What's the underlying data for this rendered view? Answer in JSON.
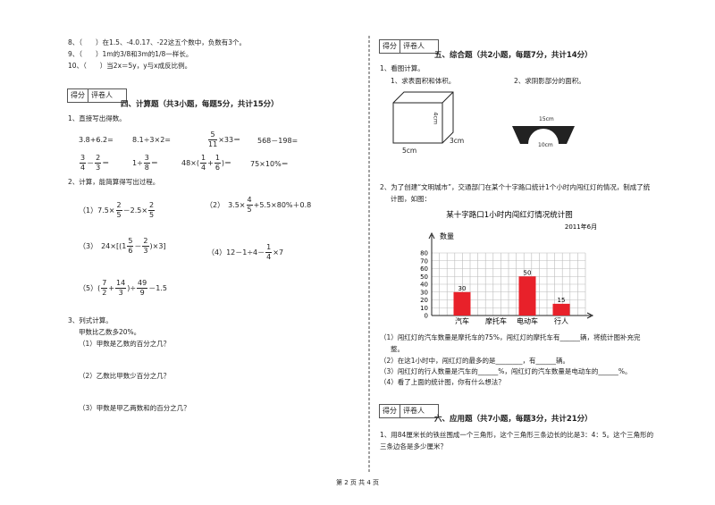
{
  "questions_top": [
    "8、（　　）在1.5、-4.0.17、-22这五个数中，负数有3个。",
    "9、（　　）1m的3/8和3m的1/8一样长。",
    "10、（　　）当2x＝5y，y与x成反比例。"
  ],
  "score_box": {
    "score": "得分",
    "grader": "评卷人"
  },
  "section4": {
    "heading": "四、计算题（共3小题，每题5分，共计15分）",
    "q1": {
      "title": "1、直接写出得数。",
      "items": [
        [
          "3.8+6.2="
        ],
        [
          "8.1÷3×2="
        ],
        [
          [
            "5",
            "11"
          ],
          "×33＝"
        ],
        [
          "568－198="
        ],
        [
          [
            "3",
            "4"
          ],
          "－",
          [
            "2",
            "3"
          ],
          "＝"
        ],
        [
          "1÷",
          [
            "3",
            "8"
          ],
          "＝"
        ],
        [
          "48×(",
          [
            "1",
            "4"
          ],
          "+",
          [
            "1",
            "6"
          ],
          ")＝"
        ],
        [
          "75×10%＝"
        ]
      ]
    },
    "q2": {
      "title": "2、计算，能简算得写出过程。",
      "items": [
        [
          "（1）7.5×",
          [
            "2",
            "5"
          ],
          "－2.5×",
          [
            "2",
            "5"
          ]
        ],
        [
          "（2）　3.5×",
          [
            "4",
            "5"
          ],
          "+5.5×80%＋0.8"
        ],
        [
          "（3）　24×[(1",
          [
            "5",
            "6"
          ],
          "－",
          [
            "2",
            "3"
          ],
          ")×3]"
        ],
        [
          "（4）12－1÷4－",
          [
            "1",
            "4"
          ],
          "×7"
        ],
        [
          "（5）(",
          [
            "7",
            "2"
          ],
          "+",
          [
            "14",
            "3"
          ],
          ")÷",
          [
            "49",
            "9"
          ],
          "－1.5"
        ]
      ]
    },
    "q3": {
      "title": "3、列式计算。",
      "premise": "甲数比乙数多20%。",
      "items": [
        "（1）甲数是乙数的百分之几？",
        "（2）乙数比甲数少百分之几？",
        "（3）甲数是甲乙两数和的百分之几？"
      ]
    }
  },
  "section5": {
    "heading": "五、综合题（共2小题，每题7分，共计14分）",
    "q1": {
      "title": "1、看图计算。",
      "sub1": "1、求表面积和体积。",
      "sub2": "2、求阴影部分的面积。",
      "cuboid": {
        "height": "4cm",
        "depth": "3cm",
        "length": "5cm"
      },
      "arch": {
        "top": "15cm",
        "bottom": "10cm"
      }
    },
    "q2": {
      "text": [
        "2、为了创建“文明城市”，交通部门在某个十字路口统计1个小时内闯红灯的情况，制成了统",
        "计图，如图："
      ],
      "chart_data": {
        "type": "bar",
        "title": "某十字路口1小时内闯红灯情况统计图",
        "subtitle": "2011年6月",
        "y_label": "数量",
        "categories": [
          "汽车",
          "摩托车",
          "电动车",
          "行人"
        ],
        "values": [
          30,
          null,
          50,
          15
        ],
        "color": "#e8212a",
        "ylim": [
          0,
          80
        ],
        "yticks": [
          0,
          10,
          20,
          30,
          40,
          50,
          60,
          70,
          80
        ],
        "grid": true
      },
      "questions": [
        "（1）闯红灯的汽车数量是摩托车的75%，闯红灯的摩托车有______辆，将统计图补充完",
        "整。",
        "（2）在这1小时中，闯红灯的最多的是________，有______辆。",
        "（3）闯红灯的行人数量是汽车的______%，闯红灯的汽车数量是电动车的______%。",
        "（4）看了上面的统计图，你有什么想法？"
      ]
    }
  },
  "section6": {
    "heading": "六、应用题（共7小题，每题3分，共计21分）",
    "q1": [
      "1、用84厘米长的铁丝围成一个三角形，这个三角形三条边长的比是3：4：5。这个三角形的",
      "三条边各是多少厘米？"
    ]
  },
  "footer": "第 2 页 共 4 页"
}
